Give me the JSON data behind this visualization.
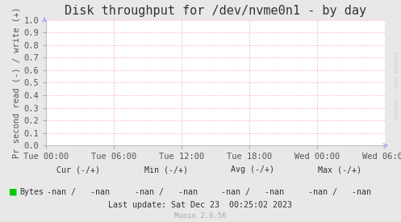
{
  "title": "Disk throughput for /dev/nvme0n1 - by day",
  "ylabel": "Pr second read (-) / write (+)",
  "background_color": "#e8e8e8",
  "plot_background_color": "#ffffff",
  "grid_color": "#ffaaaa",
  "border_color": "#aaaaaa",
  "ylim": [
    0.0,
    1.0
  ],
  "yticks": [
    0.0,
    0.1,
    0.2,
    0.3,
    0.4,
    0.5,
    0.6,
    0.7,
    0.8,
    0.9,
    1.0
  ],
  "xtick_labels": [
    "Tue 00:00",
    "Tue 06:00",
    "Tue 12:00",
    "Tue 18:00",
    "Wed 00:00",
    "Wed 06:00"
  ],
  "title_fontsize": 11,
  "axis_fontsize": 7.5,
  "tick_fontsize": 7.5,
  "legend_label": "Bytes",
  "legend_color": "#00cc00",
  "watermark": "RRDTOOL / TOBI OETIKER",
  "title_color": "#333333",
  "label_color": "#555555",
  "tick_color": "#555555",
  "footer_color": "#333333",
  "watermark_color": "#cccccc",
  "munin_color": "#aaaaaa",
  "arrow_color": "#aaaaff"
}
